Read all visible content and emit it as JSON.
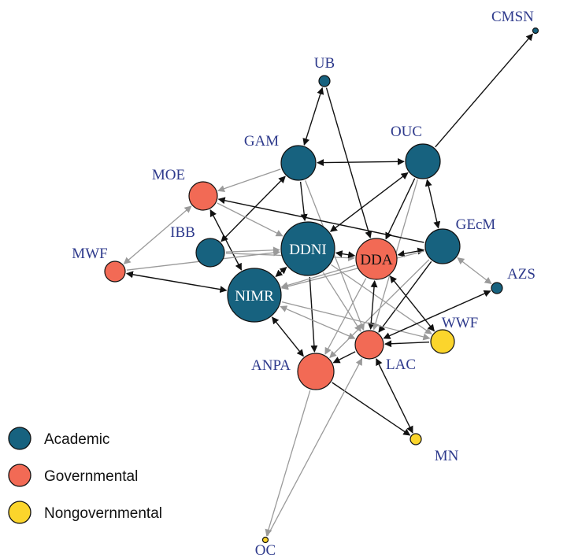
{
  "colors": {
    "academic": "#17627f",
    "governmental": "#f26a55",
    "nongovernmental": "#fbd52c",
    "label": "#2e3a8c",
    "edge_strong": "#111111",
    "edge_weak": "#9a9a9a"
  },
  "nodes": [
    {
      "id": "CMSN",
      "label": "CMSN",
      "group": "academic"
    },
    {
      "id": "UB",
      "label": "UB",
      "group": "academic"
    },
    {
      "id": "GAM",
      "label": "GAM",
      "group": "academic"
    },
    {
      "id": "OUC",
      "label": "OUC",
      "group": "academic"
    },
    {
      "id": "MOE",
      "label": "MOE",
      "group": "governmental"
    },
    {
      "id": "GEcM",
      "label": "GEcM",
      "group": "academic"
    },
    {
      "id": "IBB",
      "label": "IBB",
      "group": "academic"
    },
    {
      "id": "DDNI",
      "label": "DDNI",
      "group": "academic"
    },
    {
      "id": "DDA",
      "label": "DDA",
      "group": "governmental"
    },
    {
      "id": "MWF",
      "label": "MWF",
      "group": "governmental"
    },
    {
      "id": "AZS",
      "label": "AZS",
      "group": "academic"
    },
    {
      "id": "NIMR",
      "label": "NIMR",
      "group": "academic"
    },
    {
      "id": "WWF",
      "label": "WWF",
      "group": "nongovernmental"
    },
    {
      "id": "LAC",
      "label": "LAC",
      "group": "governmental"
    },
    {
      "id": "ANPA",
      "label": "ANPA",
      "group": "governmental"
    },
    {
      "id": "MN",
      "label": "MN",
      "group": "nongovernmental"
    },
    {
      "id": "OC",
      "label": "OC",
      "group": "nongovernmental"
    }
  ],
  "edges": [
    {
      "from": "OUC",
      "to": "CMSN",
      "strength": "strong",
      "bidirectional": false
    },
    {
      "from": "UB",
      "to": "GAM",
      "strength": "strong",
      "bidirectional": true
    },
    {
      "from": "UB",
      "to": "DDA",
      "strength": "strong",
      "bidirectional": false
    },
    {
      "from": "GAM",
      "to": "OUC",
      "strength": "strong",
      "bidirectional": true
    },
    {
      "from": "GAM",
      "to": "MOE",
      "strength": "weak",
      "bidirectional": false
    },
    {
      "from": "GAM",
      "to": "DDNI",
      "strength": "strong",
      "bidirectional": false
    },
    {
      "from": "GAM",
      "to": "IBB",
      "strength": "strong",
      "bidirectional": true
    },
    {
      "from": "GAM",
      "to": "LAC",
      "strength": "weak",
      "bidirectional": false
    },
    {
      "from": "OUC",
      "to": "DDNI",
      "strength": "strong",
      "bidirectional": true
    },
    {
      "from": "OUC",
      "to": "DDA",
      "strength": "strong",
      "bidirectional": false
    },
    {
      "from": "OUC",
      "to": "GEcM",
      "strength": "strong",
      "bidirectional": true
    },
    {
      "from": "OUC",
      "to": "LAC",
      "strength": "weak",
      "bidirectional": false
    },
    {
      "from": "GEcM",
      "to": "MOE",
      "strength": "strong",
      "bidirectional": false
    },
    {
      "from": "GEcM",
      "to": "DDA",
      "strength": "strong",
      "bidirectional": true
    },
    {
      "from": "GEcM",
      "to": "AZS",
      "strength": "weak",
      "bidirectional": true
    },
    {
      "from": "GEcM",
      "to": "LAC",
      "strength": "strong",
      "bidirectional": false
    },
    {
      "from": "GEcM",
      "to": "ANPA",
      "strength": "weak",
      "bidirectional": false
    },
    {
      "from": "GEcM",
      "to": "NIMR",
      "strength": "weak",
      "bidirectional": false
    },
    {
      "from": "MOE",
      "to": "MWF",
      "strength": "weak",
      "bidirectional": true
    },
    {
      "from": "MOE",
      "to": "NIMR",
      "strength": "strong",
      "bidirectional": true
    },
    {
      "from": "MOE",
      "to": "DDNI",
      "strength": "weak",
      "bidirectional": false
    },
    {
      "from": "IBB",
      "to": "DDNI",
      "strength": "weak",
      "bidirectional": false
    },
    {
      "from": "IBB",
      "to": "DDA",
      "strength": "weak",
      "bidirectional": false
    },
    {
      "from": "MWF",
      "to": "NIMR",
      "strength": "strong",
      "bidirectional": true
    },
    {
      "from": "MWF",
      "to": "DDNI",
      "strength": "weak",
      "bidirectional": false
    },
    {
      "from": "DDNI",
      "to": "DDA",
      "strength": "strong",
      "bidirectional": true
    },
    {
      "from": "DDNI",
      "to": "NIMR",
      "strength": "strong",
      "bidirectional": true
    },
    {
      "from": "DDNI",
      "to": "ANPA",
      "strength": "strong",
      "bidirectional": false
    },
    {
      "from": "DDNI",
      "to": "LAC",
      "strength": "weak",
      "bidirectional": false
    },
    {
      "from": "DDNI",
      "to": "WWF",
      "strength": "weak",
      "bidirectional": false
    },
    {
      "from": "DDA",
      "to": "NIMR",
      "strength": "weak",
      "bidirectional": false
    },
    {
      "from": "DDA",
      "to": "LAC",
      "strength": "strong",
      "bidirectional": true
    },
    {
      "from": "DDA",
      "to": "WWF",
      "strength": "strong",
      "bidirectional": true
    },
    {
      "from": "DDA",
      "to": "ANPA",
      "strength": "weak",
      "bidirectional": false
    },
    {
      "from": "NIMR",
      "to": "ANPA",
      "strength": "strong",
      "bidirectional": true
    },
    {
      "from": "NIMR",
      "to": "LAC",
      "strength": "weak",
      "bidirectional": true
    },
    {
      "from": "NIMR",
      "to": "WWF",
      "strength": "weak",
      "bidirectional": false
    },
    {
      "from": "AZS",
      "to": "LAC",
      "strength": "strong",
      "bidirectional": true
    },
    {
      "from": "WWF",
      "to": "LAC",
      "strength": "strong",
      "bidirectional": false
    },
    {
      "from": "LAC",
      "to": "ANPA",
      "strength": "strong",
      "bidirectional": false
    },
    {
      "from": "LAC",
      "to": "MN",
      "strength": "strong",
      "bidirectional": true
    },
    {
      "from": "ANPA",
      "to": "MN",
      "strength": "strong",
      "bidirectional": false
    },
    {
      "from": "ANPA",
      "to": "OC",
      "strength": "weak",
      "bidirectional": false
    },
    {
      "from": "OC",
      "to": "LAC",
      "strength": "weak",
      "bidirectional": false
    }
  ],
  "legend": [
    {
      "group": "academic",
      "label": "Academic"
    },
    {
      "group": "governmental",
      "label": "Governmental"
    },
    {
      "group": "nongovernmental",
      "label": "Nongovernmental"
    }
  ]
}
